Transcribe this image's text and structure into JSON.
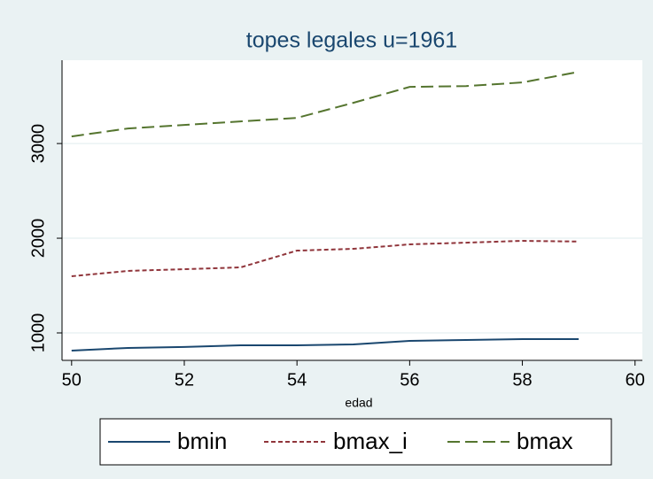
{
  "chart_data": {
    "type": "line",
    "title": "topes legales u=1961",
    "x_label": "edad",
    "x": [
      50,
      51,
      52,
      53,
      54,
      55,
      56,
      57,
      58,
      59
    ],
    "series": [
      {
        "name": "bmin",
        "color": "#1a476f",
        "dash": "solid",
        "values": [
          813,
          841,
          852,
          869,
          869,
          878,
          916,
          925,
          935,
          935
        ]
      },
      {
        "name": "bmax_i",
        "color": "#90353b",
        "dash": "short",
        "values": [
          1598,
          1655,
          1673,
          1692,
          1869,
          1888,
          1935,
          1953,
          1972,
          1965
        ]
      },
      {
        "name": "bmax",
        "color": "#55752f",
        "dash": "long",
        "values": [
          3075,
          3159,
          3196,
          3234,
          3271,
          3430,
          3598,
          3607,
          3645,
          3757
        ]
      }
    ],
    "xlim": [
      49.83,
      60.13
    ],
    "xticks": [
      50,
      52,
      54,
      56,
      58,
      60
    ],
    "ylim": [
      710,
      3880
    ],
    "yticks": [
      1000,
      2000,
      3000
    ],
    "grid": true,
    "legend": "bottom"
  }
}
